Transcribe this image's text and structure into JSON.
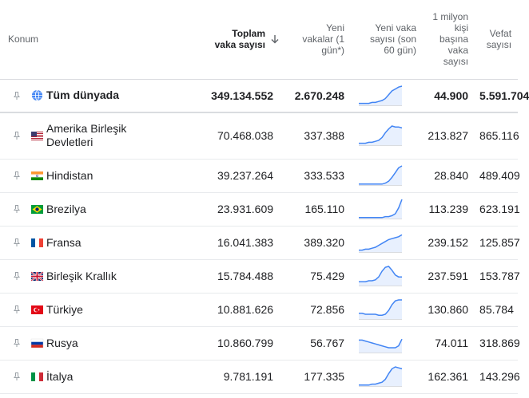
{
  "headers": {
    "location": "Konum",
    "total_cases": "Toplam vaka sayısı",
    "new_cases": "Yeni vakalar (1 gün*)",
    "new_cases_60": "Yeni vaka sayısı (son 60 gün)",
    "per_million": "1 milyon kişi başına vaka sayısı",
    "deaths": "Vefat sayısı"
  },
  "rows": [
    {
      "name": "Tüm dünyada",
      "total": "349.134.552",
      "new": "2.670.248",
      "per_million": "44.900",
      "deaths": "5.591.704",
      "flag": "globe-icon",
      "trend": [
        2,
        2,
        2,
        2,
        3,
        3,
        4,
        5,
        7,
        11,
        15,
        17,
        19,
        20
      ]
    },
    {
      "name": "Amerika Birleşik Devletleri",
      "total": "70.468.038",
      "new": "337.388",
      "per_million": "213.827",
      "deaths": "865.116",
      "flag": "us-flag-icon",
      "trend": [
        2,
        2,
        2,
        3,
        3,
        4,
        5,
        8,
        13,
        17,
        20,
        19,
        19,
        18
      ]
    },
    {
      "name": "Hindistan",
      "total": "39.237.264",
      "new": "333.533",
      "per_million": "28.840",
      "deaths": "489.409",
      "flag": "in-flag-icon",
      "trend": [
        1,
        1,
        1,
        1,
        1,
        1,
        1,
        1,
        2,
        4,
        8,
        13,
        18,
        20
      ]
    },
    {
      "name": "Brezilya",
      "total": "23.931.609",
      "new": "165.110",
      "per_million": "113.239",
      "deaths": "623.191",
      "flag": "br-flag-icon",
      "trend": [
        1,
        1,
        1,
        1,
        1,
        1,
        1,
        1,
        2,
        2,
        3,
        5,
        11,
        20
      ]
    },
    {
      "name": "Fransa",
      "total": "16.041.383",
      "new": "389.320",
      "per_million": "239.152",
      "deaths": "125.857",
      "flag": "fr-flag-icon",
      "trend": [
        2,
        2,
        3,
        3,
        4,
        5,
        7,
        9,
        11,
        13,
        14,
        15,
        16,
        18
      ]
    },
    {
      "name": "Birleşik Krallık",
      "total": "15.784.488",
      "new": "75.429",
      "per_million": "237.591",
      "deaths": "153.787",
      "flag": "gb-flag-icon",
      "trend": [
        4,
        4,
        4,
        5,
        5,
        6,
        9,
        15,
        19,
        20,
        16,
        11,
        9,
        9
      ]
    },
    {
      "name": "Türkiye",
      "total": "10.881.626",
      "new": "72.856",
      "per_million": "130.860",
      "deaths": "85.784",
      "flag": "tr-flag-icon",
      "trend": [
        6,
        6,
        5,
        5,
        5,
        5,
        4,
        4,
        5,
        9,
        15,
        19,
        20,
        20
      ]
    },
    {
      "name": "Rusya",
      "total": "10.860.799",
      "new": "56.767",
      "per_million": "74.011",
      "deaths": "318.869",
      "flag": "ru-flag-icon",
      "trend": [
        13,
        13,
        12,
        11,
        10,
        9,
        8,
        7,
        6,
        5,
        5,
        5,
        7,
        14
      ]
    },
    {
      "name": "İtalya",
      "total": "9.781.191",
      "new": "177.335",
      "per_million": "162.361",
      "deaths": "143.296",
      "flag": "it-flag-icon",
      "trend": [
        1,
        1,
        1,
        1,
        2,
        2,
        3,
        4,
        7,
        13,
        18,
        20,
        19,
        18
      ]
    }
  ],
  "colors": {
    "spark_line": "#4285f4",
    "spark_fill": "#e8f0fe",
    "header_text": "#5f6368",
    "text": "#202124",
    "divider": "#e8eaed"
  }
}
